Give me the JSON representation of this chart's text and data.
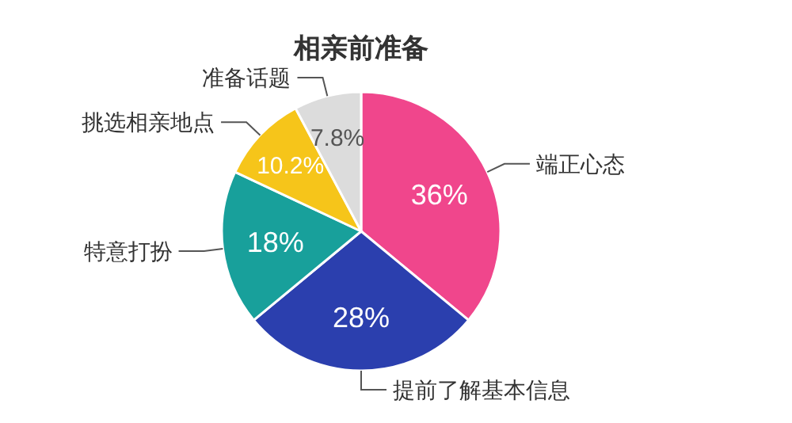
{
  "chart_data": {
    "type": "pie",
    "title": "相亲前准备",
    "categories": [
      "端正心态",
      "提前了解基本信息",
      "特意打扮",
      "挑选相亲地点",
      "准备话题"
    ],
    "values": [
      36,
      28,
      18,
      10.2,
      7.8
    ],
    "value_labels": [
      "36%",
      "28%",
      "18%",
      "10.2%",
      "7.8%"
    ],
    "colors": [
      "#f0468c",
      "#2b3fae",
      "#18a09b",
      "#f6c51a",
      "#dcdcdc"
    ],
    "legend": false
  }
}
